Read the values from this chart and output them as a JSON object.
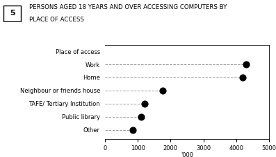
{
  "title_number": "5",
  "title_line1": "PERSONS AGED 18 YEARS AND OVER ACCESSING COMPUTERS BY",
  "title_line2": "PLACE OF ACCESS",
  "categories": [
    "Place of access",
    "Work",
    "Home",
    "Neighbour or friends house",
    "TAFE/ Tertiary Institution",
    "Public library",
    "Other"
  ],
  "values": [
    null,
    4300,
    4200,
    1750,
    1200,
    1100,
    850
  ],
  "xlabel": "'000",
  "xlim": [
    0,
    5000
  ],
  "xticks": [
    0,
    1000,
    2000,
    3000,
    4000,
    5000
  ],
  "dot_color": "#000000",
  "dot_size": 40,
  "line_color": "#999999",
  "line_style": "--",
  "line_width": 0.7,
  "bg_color": "#ffffff",
  "title_fontsize": 6.2,
  "label_fontsize": 6.0,
  "tick_fontsize": 6.0
}
